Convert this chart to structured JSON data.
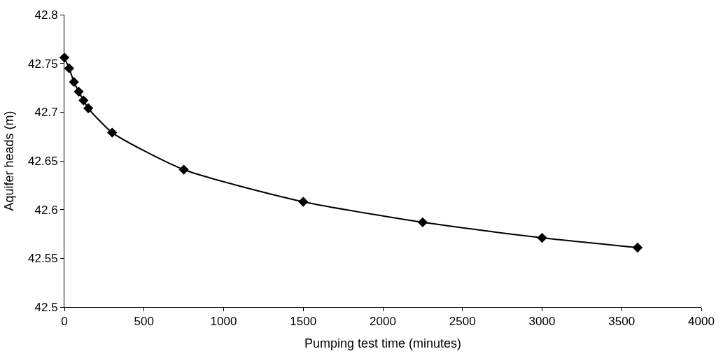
{
  "chart_data": {
    "type": "line",
    "xlabel": "Pumping test time (minutes)",
    "ylabel": "Aquifer heads (m)",
    "x": [
      0,
      30,
      60,
      90,
      120,
      150,
      300,
      750,
      1500,
      2250,
      3000,
      3600
    ],
    "series": [
      {
        "color": "#000000",
        "values": [
          42.756,
          42.745,
          42.731,
          42.721,
          42.712,
          42.704,
          42.679,
          42.641,
          42.608,
          42.587,
          42.571,
          42.561
        ]
      }
    ],
    "xlim": [
      0,
      4000
    ],
    "xticks": [
      0,
      500,
      1000,
      1500,
      2000,
      2500,
      3000,
      3500,
      4000
    ],
    "ylim": [
      42.5,
      42.8
    ],
    "yticks": [
      42.5,
      42.55,
      42.6,
      42.65,
      42.7,
      42.75,
      42.8
    ],
    "marker": "diamond",
    "line_style": "solid"
  }
}
